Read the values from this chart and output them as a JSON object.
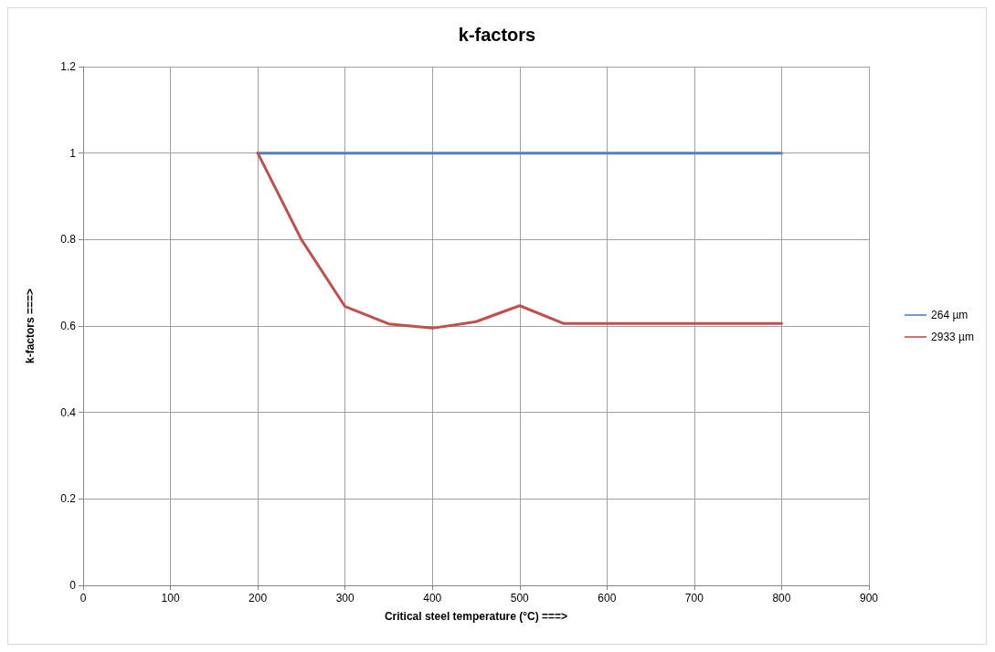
{
  "chart_data": {
    "type": "line",
    "title": "k-factors",
    "xlabel": "Critical steel temperature (°C) ===>",
    "ylabel": "k-factors ===>",
    "x": [
      200,
      250,
      300,
      350,
      400,
      450,
      500,
      550,
      600,
      650,
      700,
      750,
      800
    ],
    "series": [
      {
        "name": "264 µm",
        "color": "#4f81bd",
        "values": [
          1,
          1,
          1,
          1,
          1,
          1,
          1,
          1,
          1,
          1,
          1,
          1,
          1
        ]
      },
      {
        "name": "2933 µm",
        "color": "#c0504d",
        "values": [
          1,
          0.8,
          0.645,
          0.605,
          0.595,
          0.61,
          0.647,
          0.606,
          0.606,
          0.606,
          0.606,
          0.606,
          0.606
        ]
      }
    ],
    "xlim": [
      0,
      900
    ],
    "xticks": [
      0,
      100,
      200,
      300,
      400,
      500,
      600,
      700,
      800,
      900
    ],
    "ylim": [
      0,
      1.2
    ],
    "yticks": [
      0,
      0.2,
      0.4,
      0.6,
      0.8,
      1,
      1.2
    ],
    "grid": true,
    "legend": "right",
    "marker": "none",
    "line_style": "solid"
  }
}
